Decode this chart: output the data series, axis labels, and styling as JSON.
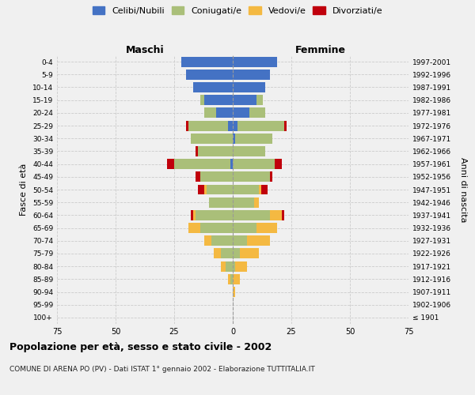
{
  "age_groups": [
    "100+",
    "95-99",
    "90-94",
    "85-89",
    "80-84",
    "75-79",
    "70-74",
    "65-69",
    "60-64",
    "55-59",
    "50-54",
    "45-49",
    "40-44",
    "35-39",
    "30-34",
    "25-29",
    "20-24",
    "15-19",
    "10-14",
    "5-9",
    "0-4"
  ],
  "birth_years": [
    "≤ 1901",
    "1902-1906",
    "1907-1911",
    "1912-1916",
    "1917-1921",
    "1922-1926",
    "1927-1931",
    "1932-1936",
    "1937-1941",
    "1942-1946",
    "1947-1951",
    "1952-1956",
    "1957-1961",
    "1962-1966",
    "1967-1971",
    "1972-1976",
    "1977-1981",
    "1982-1986",
    "1987-1991",
    "1992-1996",
    "1997-2001"
  ],
  "males": {
    "celibi": [
      0,
      0,
      0,
      0,
      0,
      0,
      0,
      0,
      0,
      0,
      0,
      0,
      1,
      0,
      0,
      2,
      7,
      12,
      17,
      20,
      22
    ],
    "coniugati": [
      0,
      0,
      0,
      1,
      3,
      5,
      9,
      14,
      16,
      10,
      11,
      14,
      24,
      15,
      18,
      17,
      5,
      2,
      0,
      0,
      0
    ],
    "vedovi": [
      0,
      0,
      0,
      1,
      2,
      3,
      3,
      5,
      1,
      0,
      1,
      0,
      0,
      0,
      0,
      0,
      0,
      0,
      0,
      0,
      0
    ],
    "divorziati": [
      0,
      0,
      0,
      0,
      0,
      0,
      0,
      0,
      1,
      0,
      3,
      2,
      3,
      1,
      0,
      1,
      0,
      0,
      0,
      0,
      0
    ]
  },
  "females": {
    "nubili": [
      0,
      0,
      0,
      0,
      0,
      0,
      0,
      0,
      0,
      0,
      0,
      0,
      0,
      0,
      1,
      2,
      7,
      10,
      14,
      16,
      19
    ],
    "coniugate": [
      0,
      0,
      0,
      0,
      1,
      3,
      6,
      10,
      16,
      9,
      11,
      16,
      18,
      14,
      16,
      20,
      7,
      3,
      0,
      0,
      0
    ],
    "vedove": [
      0,
      0,
      1,
      3,
      5,
      8,
      10,
      9,
      5,
      2,
      1,
      0,
      0,
      0,
      0,
      0,
      0,
      0,
      0,
      0,
      0
    ],
    "divorziate": [
      0,
      0,
      0,
      0,
      0,
      0,
      0,
      0,
      1,
      0,
      3,
      1,
      3,
      0,
      0,
      1,
      0,
      0,
      0,
      0,
      0
    ]
  },
  "colors": {
    "celibi_nubili": "#4472C4",
    "coniugati": "#AABF79",
    "vedovi": "#F4B942",
    "divorziati": "#C0000C"
  },
  "xlim": 75,
  "title": "Popolazione per età, sesso e stato civile - 2002",
  "subtitle": "COMUNE DI ARENA PO (PV) - Dati ISTAT 1° gennaio 2002 - Elaborazione TUTTITALIA.IT",
  "xlabel_left": "Maschi",
  "xlabel_right": "Femmine",
  "ylabel_left": "Fasce di età",
  "ylabel_right": "Anni di nascita",
  "background_color": "#f0f0f0"
}
